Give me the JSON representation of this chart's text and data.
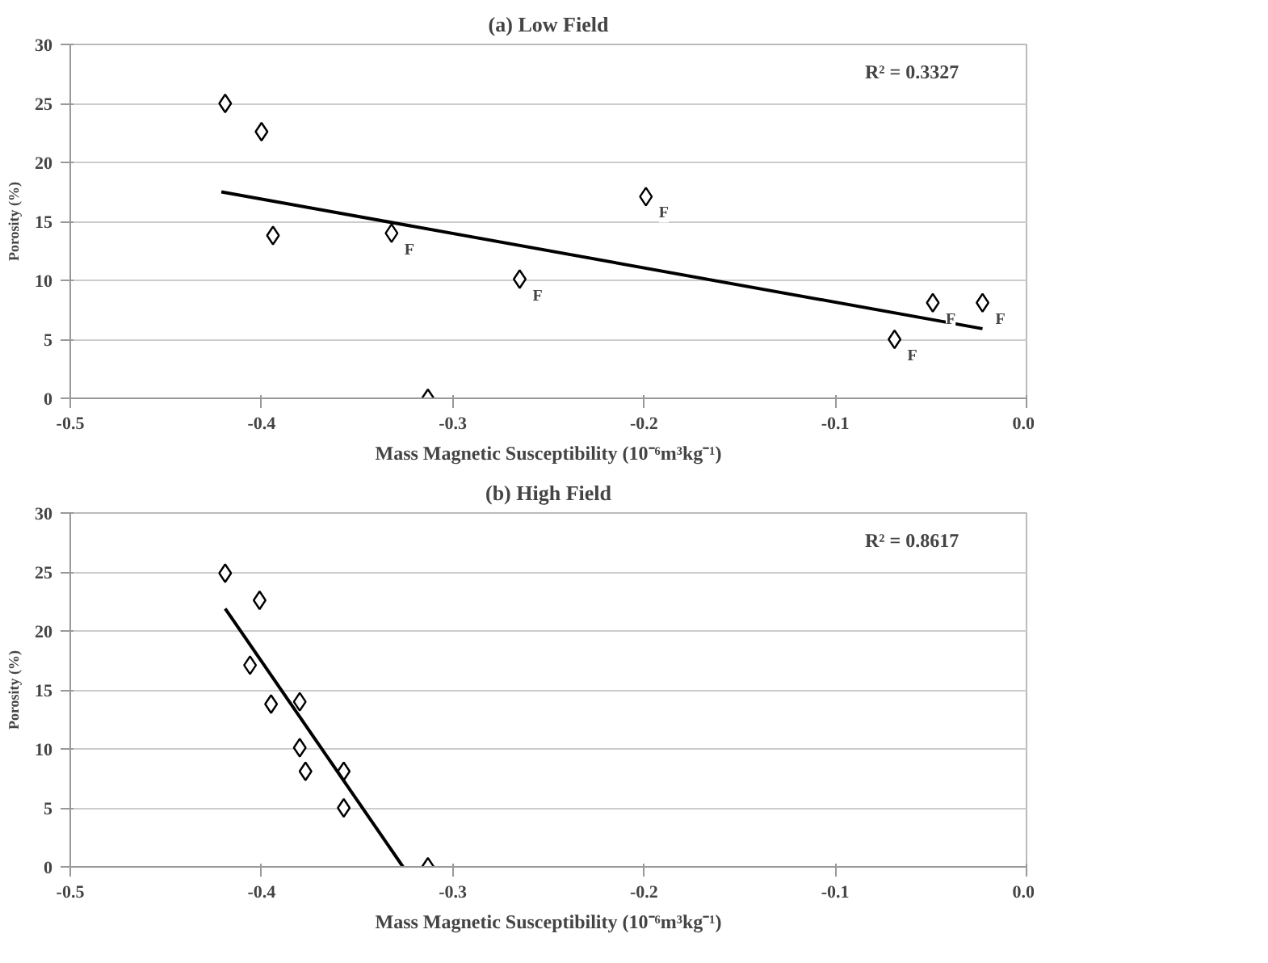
{
  "chart_data": [
    {
      "type": "scatter",
      "title": "(a) Low Field",
      "xlabel": "Mass Magnetic Susceptibility (10⁻⁶m³kg⁻¹)",
      "ylabel": "Porosity (%)",
      "xlim": [
        -0.5,
        0.0
      ],
      "xticks": [
        {
          "value": -0.5,
          "label": "-0.5"
        },
        {
          "value": -0.4,
          "label": "-0.4"
        },
        {
          "value": -0.3,
          "label": "-0.3"
        },
        {
          "value": -0.2,
          "label": "-0.2"
        },
        {
          "value": -0.1,
          "label": "-0.1"
        },
        {
          "value": 0.0,
          "label": "0.0"
        }
      ],
      "ylim": [
        0,
        30
      ],
      "yticks": [
        0,
        5,
        10,
        15,
        20,
        25,
        30
      ],
      "grid": "y",
      "series": [
        {
          "marker": "diamond",
          "color": "#000000",
          "x": [
            -0.419,
            -0.4,
            -0.394,
            -0.332,
            -0.265,
            -0.199,
            -0.069,
            -0.049,
            -0.023,
            -0.313
          ],
          "values": [
            25.0,
            22.6,
            13.8,
            14.0,
            10.1,
            17.1,
            5.0,
            8.1,
            8.1,
            0
          ]
        },
        {
          "type": "line",
          "color": "#000000",
          "x": [
            -0.421,
            -0.023
          ],
          "values": [
            17.5,
            5.9
          ]
        }
      ],
      "annotations": [
        "R² = 0.3327",
        {
          "text": "F",
          "x": -0.332,
          "y": 14.0
        },
        {
          "text": "F",
          "x": -0.265,
          "y": 10.1
        },
        {
          "text": "F",
          "x": -0.199,
          "y": 17.1
        },
        {
          "text": "F",
          "x": -0.069,
          "y": 5.0
        },
        {
          "text": "F",
          "x": -0.049,
          "y": 8.1
        },
        {
          "text": "F",
          "x": -0.023,
          "y": 8.1
        }
      ]
    },
    {
      "type": "scatter",
      "title": "(b) High Field",
      "xlabel": "Mass Magnetic Susceptibility (10⁻⁶m³kg⁻¹)",
      "ylabel": "Porosity (%)",
      "xlim": [
        -0.5,
        0.0
      ],
      "xticks": [
        {
          "value": -0.5,
          "label": "-0.5"
        },
        {
          "value": -0.4,
          "label": "-0.4"
        },
        {
          "value": -0.3,
          "label": "-0.3"
        },
        {
          "value": -0.2,
          "label": "-0.2"
        },
        {
          "value": -0.1,
          "label": "-0.1"
        },
        {
          "value": 0.0,
          "label": "0.0"
        }
      ],
      "ylim": [
        0,
        30
      ],
      "yticks": [
        0,
        5,
        10,
        15,
        20,
        25,
        30
      ],
      "grid": "y",
      "series": [
        {
          "marker": "diamond",
          "color": "#000000",
          "x": [
            -0.419,
            -0.401,
            -0.406,
            -0.395,
            -0.38,
            -0.38,
            -0.377,
            -0.357,
            -0.357,
            -0.313
          ],
          "values": [
            24.9,
            22.6,
            17.1,
            13.8,
            14.0,
            10.1,
            8.1,
            8.1,
            5.0,
            0
          ]
        },
        {
          "type": "line",
          "color": "#000000",
          "x": [
            -0.419,
            -0.326
          ],
          "values": [
            21.9,
            0
          ]
        }
      ],
      "annotations": [
        "R² = 0.8617"
      ]
    }
  ]
}
